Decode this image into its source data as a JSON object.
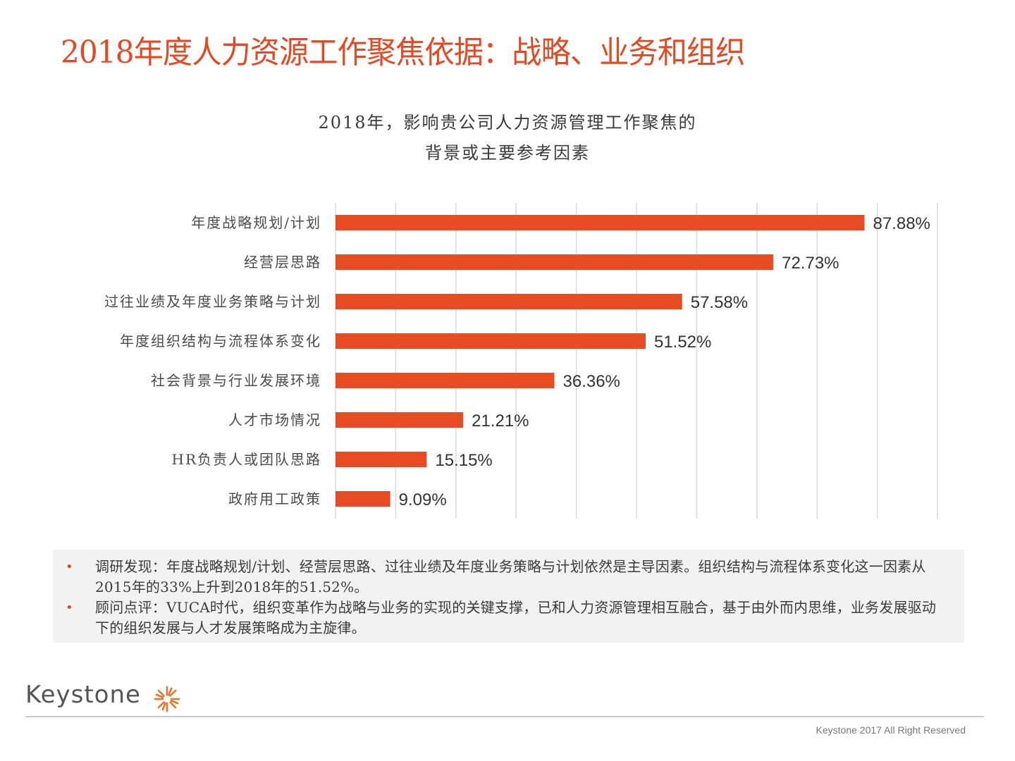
{
  "slide": {
    "title": "2018年度人力资源工作聚焦依据：战略、业务和组织"
  },
  "chart_data": {
    "type": "bar",
    "orientation": "horizontal",
    "title_lines": [
      "2018年，影响贵公司人力资源管理工作聚焦的",
      "背景或主要参考因素"
    ],
    "categories": [
      "年度战略规划/计划",
      "经营层思路",
      "过往业绩及年度业务策略与计划",
      "年度组织结构与流程体系变化",
      "社会背景与行业发展环境",
      "人才市场情况",
      "HR负责人或团队思路",
      "政府用工政策"
    ],
    "values": [
      87.88,
      72.73,
      57.58,
      51.52,
      36.36,
      21.21,
      15.15,
      9.09
    ],
    "data_labels": [
      "87.88%",
      "72.73%",
      "57.58%",
      "51.52%",
      "36.36%",
      "21.21%",
      "15.15%",
      "9.09%"
    ],
    "xlim": [
      0,
      100
    ],
    "grid_step": 10,
    "grid": true,
    "xlabel": "",
    "ylabel": "",
    "bar_color": "#e84c22",
    "legend": "none"
  },
  "notes": [
    {
      "bullet": "•",
      "text": "调研发现：年度战略规划/计划、经营层思路、过往业绩及年度业务策略与计划依然是主导因素。组织结构与流程体系变化这一因素从2015年的33%上升到2018年的51.52%。"
    },
    {
      "bullet": "•",
      "text": "顾问点评：VUCA时代，组织变革作为战略与业务的实现的关键支撑，已和人力资源管理相互融合，基于由外而内思维，业务发展驱动下的组织发展与人才发展策略成为主旋律。"
    }
  ],
  "footer": {
    "logo_text": "Keystone",
    "logo_icon": "starburst-icon",
    "copyright": "Keystone 2017 All Right Reserved"
  },
  "colors": {
    "accent": "#e04a25",
    "bar": "#e84c22",
    "notes_bg": "#f2f2f2"
  }
}
